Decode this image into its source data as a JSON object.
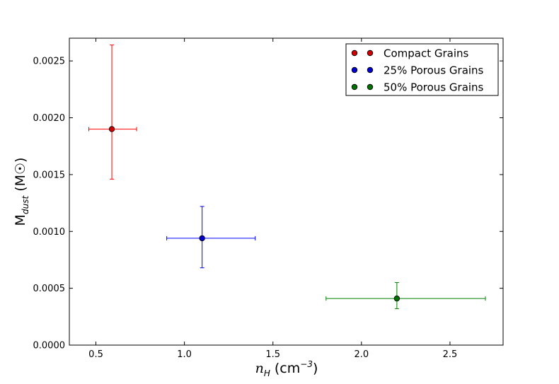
{
  "chart_data": {
    "type": "scatter",
    "xlabel": "n_H (cm^-3)",
    "ylabel": "M_dust (M☉)",
    "xlim": [
      0.35,
      2.8
    ],
    "ylim": [
      0.0,
      0.0027
    ],
    "x_ticks": [
      0.5,
      1.0,
      1.5,
      2.0,
      2.5
    ],
    "y_ticks": [
      0.0,
      0.0005,
      0.001,
      0.0015,
      0.002,
      0.0025
    ],
    "x_tick_labels": [
      "0.5",
      "1.0",
      "1.5",
      "2.0",
      "2.5"
    ],
    "y_tick_labels": [
      "0.0000",
      "0.0005",
      "0.0010",
      "0.0015",
      "0.0020",
      "0.0025"
    ],
    "grid": false,
    "legend_position": "top-right",
    "series": [
      {
        "name": "Compact Grains",
        "color": "#ff0000",
        "marker_fill": "#cc0000",
        "x": 0.59,
        "y": 0.0019,
        "x_err": [
          0.46,
          0.73
        ],
        "y_err": [
          0.00146,
          0.00264
        ]
      },
      {
        "name": "25% Porous Grains",
        "color": "#0000ff",
        "marker_fill": "#0000cc",
        "x": 1.1,
        "y": 0.00094,
        "x_err": [
          0.9,
          1.4
        ],
        "y_err": [
          0.00068,
          0.00122
        ]
      },
      {
        "name": "50% Porous Grains",
        "color": "#008000",
        "marker_fill": "#007000",
        "x": 2.2,
        "y": 0.00041,
        "x_err": [
          1.8,
          2.7
        ],
        "y_err": [
          0.00032,
          0.00055
        ]
      }
    ]
  }
}
